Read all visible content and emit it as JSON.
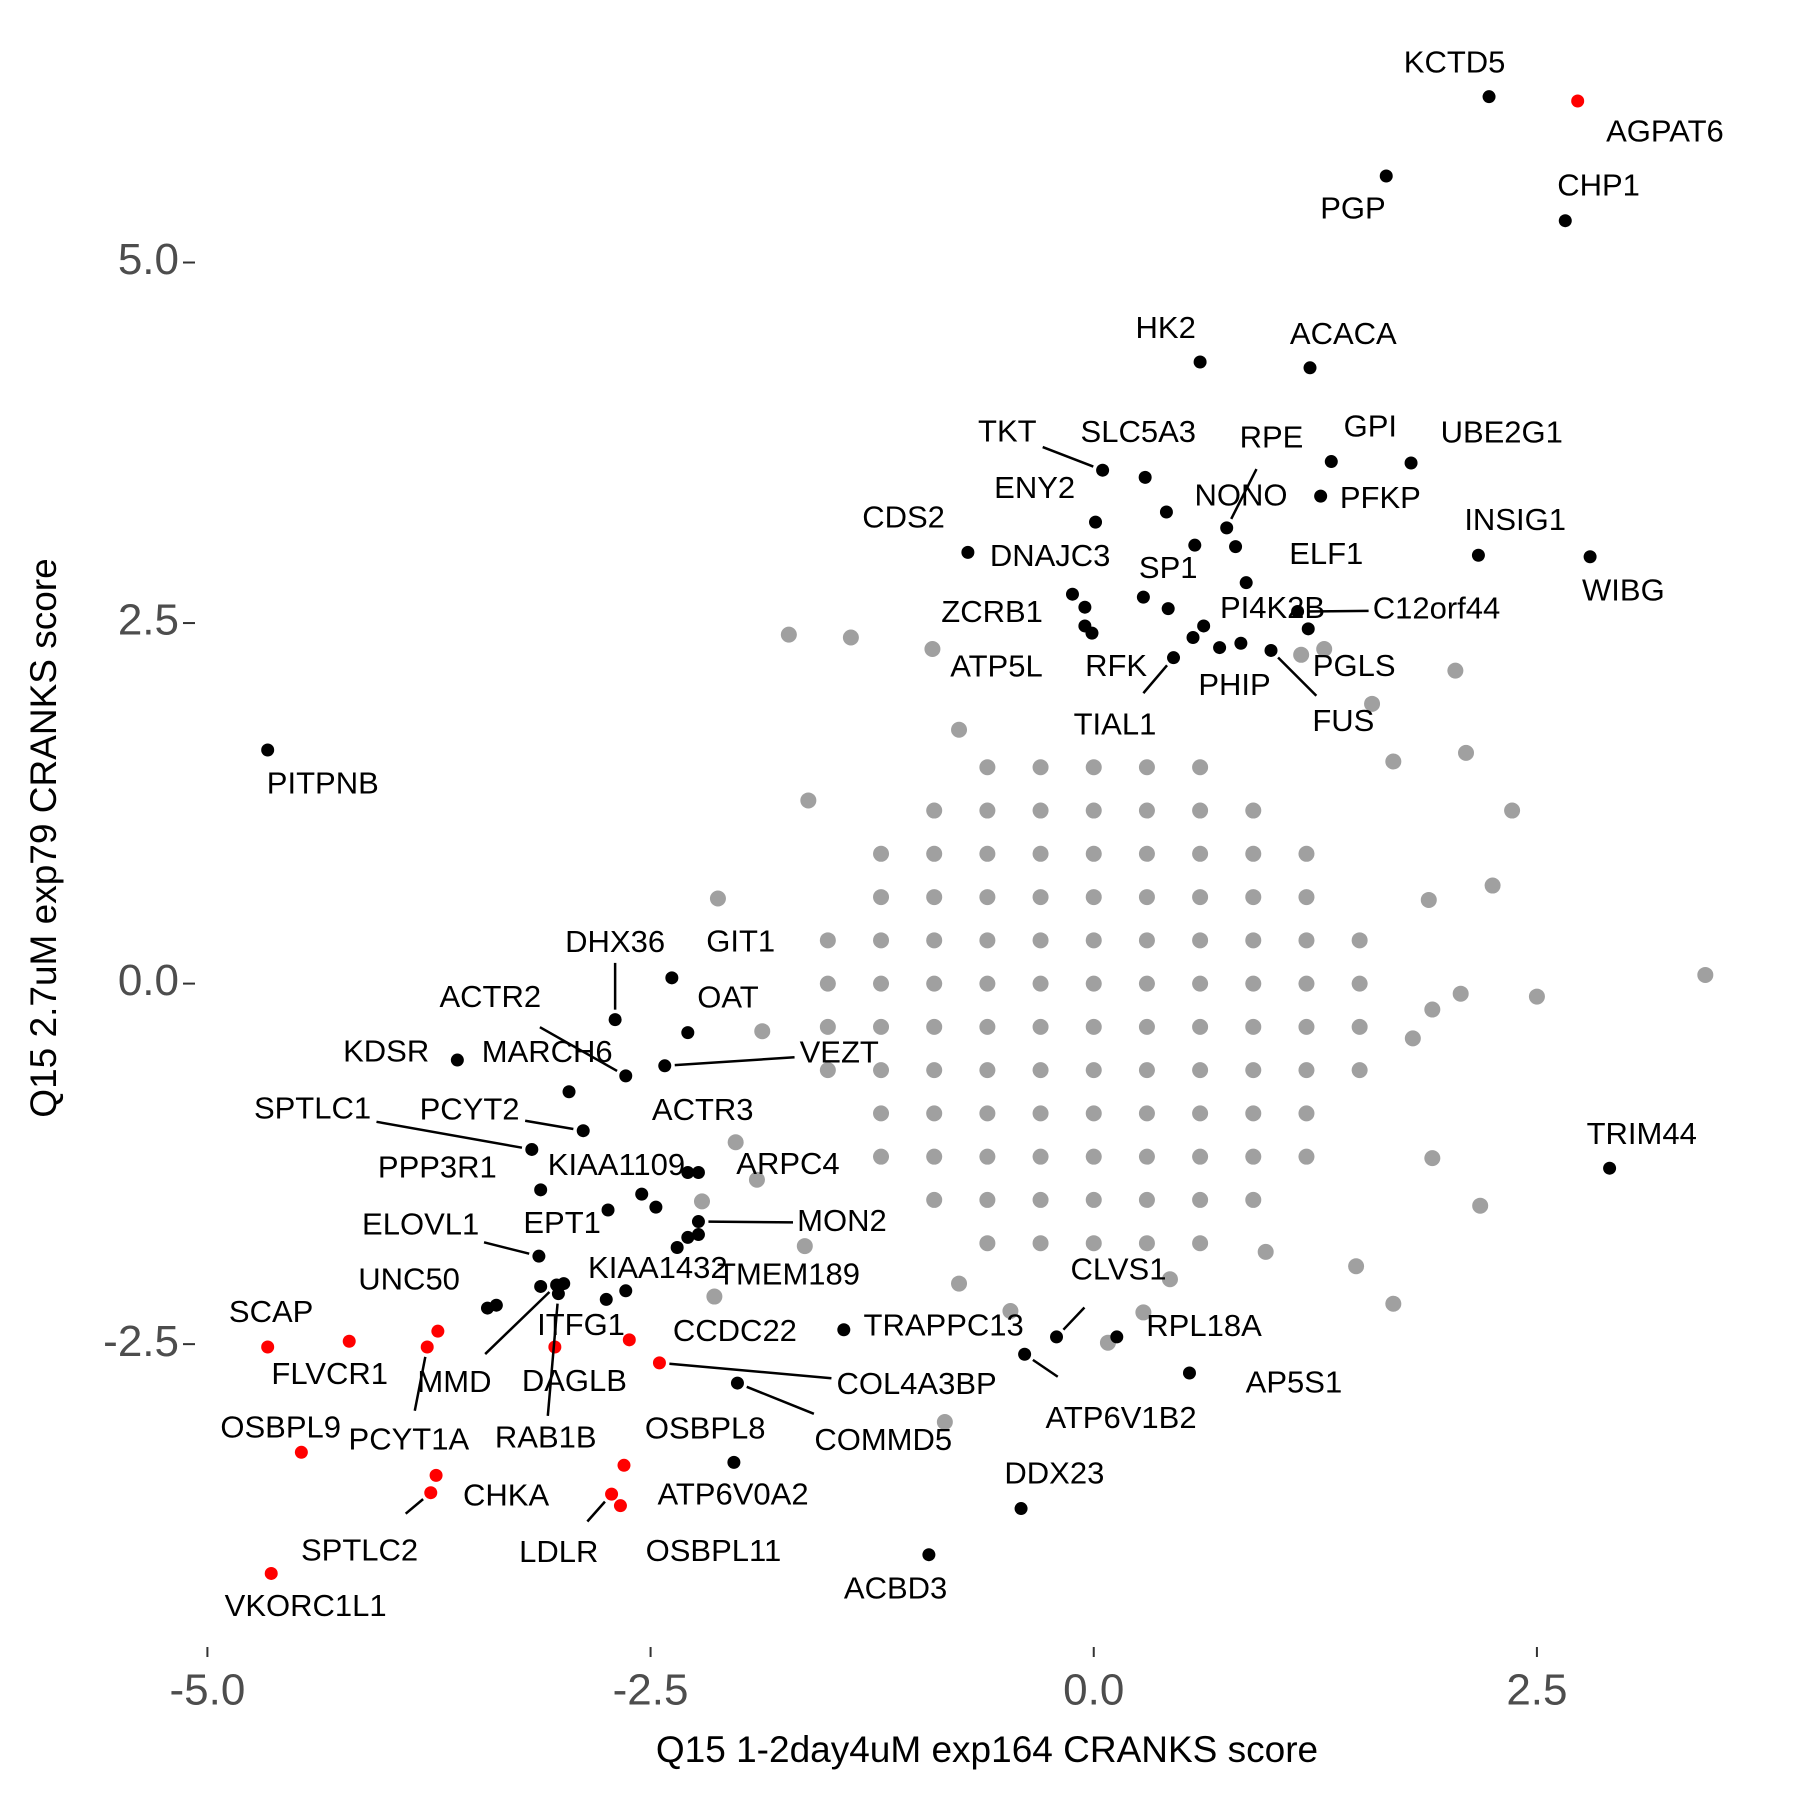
{
  "chart_data": {
    "type": "scatter",
    "x_label": "Q15 1-2day4uM exp164 CRANKS score",
    "y_label": "Q15 2.7uM exp79 CRANKS score",
    "xlim": [
      -5.07,
      3.86
    ],
    "ylim": [
      -4.6,
      6.64
    ],
    "xticks": [
      {
        "value": -5,
        "label": "-5.0"
      },
      -2.5,
      {
        "value": 0,
        "label": "0.0"
      },
      2.5
    ],
    "yticks": [
      -2.5,
      {
        "value": 0,
        "label": "0.0"
      },
      2.5,
      {
        "value": 5,
        "label": "5.0"
      }
    ],
    "series": [
      {
        "color": "#a0a0a0",
        "x": [
          -0.6,
          -0.3,
          0,
          0.3,
          0.6,
          -0.9,
          -0.6,
          -0.3,
          0,
          0.3,
          0.6,
          0.9,
          -1.2,
          -0.9,
          -0.6,
          -0.3,
          0,
          0.3,
          0.6,
          0.9,
          1.2,
          -1.2,
          -0.9,
          -0.6,
          -0.3,
          0,
          0.3,
          0.6,
          0.9,
          1.2,
          -1.5,
          -1.2,
          -0.9,
          -0.6,
          -0.3,
          0,
          0.3,
          0.6,
          0.9,
          1.2,
          1.5,
          -1.5,
          -1.2,
          -0.9,
          -0.6,
          -0.3,
          0,
          0.3,
          0.6,
          0.9,
          1.2,
          1.5,
          -1.5,
          -1.2,
          -0.9,
          -0.6,
          -0.3,
          0,
          0.3,
          0.6,
          0.9,
          1.2,
          1.5,
          -1.5,
          -1.2,
          -0.9,
          -0.6,
          -0.3,
          0,
          0.3,
          0.6,
          0.9,
          1.2,
          1.5,
          -1.2,
          -0.9,
          -0.6,
          -0.3,
          0,
          0.3,
          0.6,
          0.9,
          1.2,
          -1.2,
          -0.9,
          -0.6,
          -0.3,
          0,
          0.3,
          0.6,
          0.9,
          1.2,
          -0.9,
          -0.6,
          -0.3,
          0,
          0.3,
          0.6,
          0.9,
          -0.6,
          -0.3,
          0,
          0.3,
          0.6,
          -1.72,
          -1.37,
          -0.91,
          2.04,
          1.17,
          2.1,
          3.45,
          2.5,
          2.25,
          2.36,
          2.18,
          1.91,
          -2.12,
          -2.02,
          -1.61,
          1.48,
          0.97,
          -0.84,
          -2.14,
          -0.76,
          1.69,
          -0.76,
          1.8,
          2.07,
          -1.87,
          -1.9,
          1.69,
          -0.47,
          0.43,
          0.28,
          0.08,
          1.89,
          1.57,
          -1.63,
          -2.21,
          1.91,
          1.3
        ],
        "y": [
          1.5,
          1.5,
          1.5,
          1.5,
          1.5,
          1.2,
          1.2,
          1.2,
          1.2,
          1.2,
          1.2,
          1.2,
          0.9,
          0.9,
          0.9,
          0.9,
          0.9,
          0.9,
          0.9,
          0.9,
          0.9,
          0.6,
          0.6,
          0.6,
          0.6,
          0.6,
          0.6,
          0.6,
          0.6,
          0.6,
          0.3,
          0.3,
          0.3,
          0.3,
          0.3,
          0.3,
          0.3,
          0.3,
          0.3,
          0.3,
          0.3,
          0,
          0,
          0,
          0,
          0,
          0,
          0,
          0,
          0,
          0,
          0,
          -0.3,
          -0.3,
          -0.3,
          -0.3,
          -0.3,
          -0.3,
          -0.3,
          -0.3,
          -0.3,
          -0.3,
          -0.3,
          -0.6,
          -0.6,
          -0.6,
          -0.6,
          -0.6,
          -0.6,
          -0.6,
          -0.6,
          -0.6,
          -0.6,
          -0.6,
          -0.9,
          -0.9,
          -0.9,
          -0.9,
          -0.9,
          -0.9,
          -0.9,
          -0.9,
          -0.9,
          -1.2,
          -1.2,
          -1.2,
          -1.2,
          -1.2,
          -1.2,
          -1.2,
          -1.2,
          -1.2,
          -1.5,
          -1.5,
          -1.5,
          -1.5,
          -1.5,
          -1.5,
          -1.5,
          -1.8,
          -1.8,
          -1.8,
          -1.8,
          -1.8,
          2.42,
          2.4,
          2.32,
          2.17,
          2.28,
          1.6,
          0.06,
          -0.09,
          0.68,
          1.2,
          -1.54,
          -1.21,
          0.59,
          -1.1,
          1.27,
          -1.96,
          -1.86,
          -3.04,
          -2.17,
          -2.08,
          -2.22,
          1.76,
          -0.38,
          -0.07,
          -0.33,
          -1.36,
          1.54,
          -2.27,
          -2.05,
          -2.28,
          -2.49,
          0.58,
          1.94,
          -1.82,
          -1.51,
          -0.18,
          2.32
        ]
      },
      {
        "color": "#000000",
        "labels": [
          "KCTD5",
          "PGP",
          "CHP1",
          "HK2",
          "ACACA",
          "TKT",
          "SLC5A3",
          "GPI",
          "UBE2G1",
          "ENY2",
          "NONO",
          "PFKP",
          "RPE",
          "CDS2",
          "INSIG1",
          "WIBG",
          "DNAJC3",
          "ELF1",
          null,
          "ZCRB1",
          null,
          "ATP5L",
          "RFK",
          null,
          "SP1",
          "PI4K2B",
          null,
          "C12orf44",
          "PGLS",
          "FUS",
          "PHIP",
          null,
          "TIAL1",
          "PITPNB",
          "TRIM44",
          "GIT1",
          "OAT",
          "DHX36",
          "ACTR2",
          "VEZT",
          "KDSR",
          "MARCH6",
          "PCYT2",
          "SPTLC1",
          "PPP3R1",
          "ACTR3",
          "ARPC4",
          "KIAA1109",
          null,
          "EPT1",
          "MON2",
          null,
          "ELOVL1",
          "TMEM189",
          null,
          "KIAA1432",
          "MMD",
          null,
          "RAB1B",
          "UNC50",
          null,
          "ITFG1",
          null,
          "TRAPPC13",
          "CLVS1",
          "RPL18A",
          "ATP6V1B2",
          "AP5S1",
          "COMMD5",
          "OSBPL8",
          "DDX23",
          "ACBD3"
        ],
        "x": [
          2.23,
          1.65,
          2.66,
          0.6,
          1.22,
          0.05,
          0.29,
          1.34,
          1.79,
          0.01,
          0.41,
          1.28,
          0.75,
          -0.71,
          2.17,
          2.8,
          0.57,
          0.8,
          0.86,
          -0.12,
          -0.05,
          -0.05,
          -0.01,
          0.28,
          0.42,
          0.62,
          0.56,
          1.15,
          1.21,
          1.0,
          0.71,
          0.83,
          0.45,
          -4.66,
          2.91,
          -2.38,
          -2.29,
          -2.7,
          -2.64,
          -2.42,
          -3.59,
          -2.96,
          -2.88,
          -3.17,
          -3.12,
          -2.29,
          -2.23,
          -2.55,
          -2.47,
          -2.74,
          -2.23,
          -2.23,
          -3.13,
          -2.35,
          -2.29,
          -2.99,
          -3.03,
          -3.12,
          -3.02,
          -3.37,
          -3.42,
          -2.75,
          -2.64,
          -1.41,
          -0.21,
          0.13,
          -0.39,
          0.54,
          -2.01,
          -2.03,
          -0.41,
          -0.93
        ],
        "y": [
          6.15,
          5.6,
          5.29,
          4.31,
          4.27,
          3.56,
          3.51,
          3.62,
          3.61,
          3.2,
          3.27,
          3.38,
          3.16,
          2.99,
          2.97,
          2.96,
          3.04,
          3.03,
          2.78,
          2.7,
          2.61,
          2.48,
          2.43,
          2.68,
          2.6,
          2.48,
          2.4,
          2.58,
          2.46,
          2.31,
          2.33,
          2.36,
          2.26,
          1.62,
          -1.28,
          0.04,
          -0.34,
          -0.25,
          -0.64,
          -0.57,
          -0.53,
          -0.75,
          -1.02,
          -1.15,
          -1.43,
          -1.31,
          -1.31,
          -1.46,
          -1.55,
          -1.57,
          -1.65,
          -1.74,
          -1.89,
          -1.83,
          -1.76,
          -2.08,
          -2.09,
          -2.1,
          -2.15,
          -2.23,
          -2.25,
          -2.19,
          -2.13,
          -2.4,
          -2.45,
          -2.45,
          -2.57,
          -2.7,
          -2.77,
          -3.32,
          -3.64,
          -3.96
        ]
      },
      {
        "color": "#ff0000",
        "labels": [
          "AGPAT6",
          "SCAP",
          "FLVCR1",
          "PCYT1A",
          null,
          "DAGLB",
          "CCDC22",
          "COL4A3BP",
          "OSBPL9",
          "CHKA",
          "SPTLC2",
          "ATP6V0A2",
          "LDLR",
          "OSBPL11",
          "VKORC1L1"
        ],
        "x": [
          2.73,
          -4.66,
          -4.2,
          -3.76,
          -3.7,
          -3.04,
          -2.62,
          -2.45,
          -4.47,
          -3.71,
          -3.74,
          -2.65,
          -2.72,
          -2.67,
          -4.64
        ],
        "y": [
          6.12,
          -2.52,
          -2.48,
          -2.52,
          -2.41,
          -2.52,
          -2.47,
          -2.63,
          -3.25,
          -3.41,
          -3.53,
          -3.34,
          -3.54,
          -3.62,
          -4.09
        ]
      }
    ]
  }
}
